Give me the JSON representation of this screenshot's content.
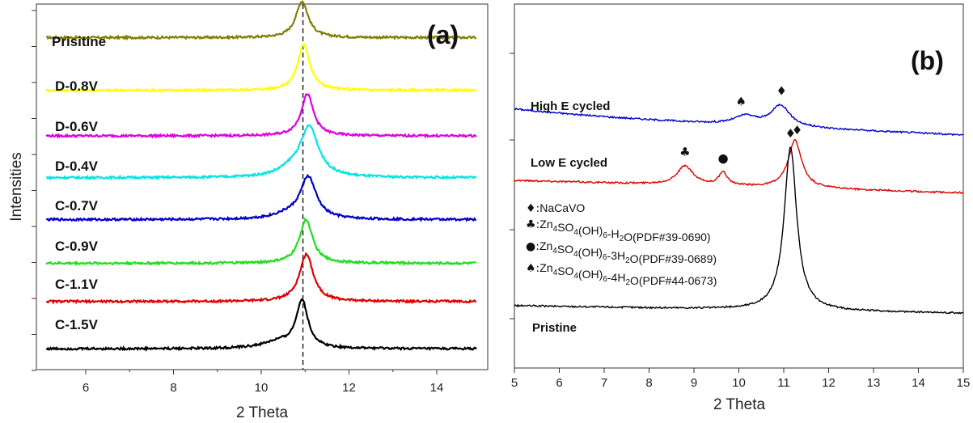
{
  "chart_data": [
    {
      "type": "line",
      "panel_label": "(a)",
      "xlabel": "2 Theta",
      "ylabel": "Intensities",
      "xlim": [
        5,
        15
      ],
      "x_ticks": [
        6,
        8,
        10,
        12,
        14
      ],
      "y_ticks": "unlabeled",
      "reference_line": {
        "x": 10.95,
        "style": "dashed"
      },
      "series": [
        {
          "name": "Prisitine",
          "color": "#808000",
          "offset": 8.9,
          "peaks": [
            {
              "center": 10.93,
              "height": 1.0,
              "width": 0.17
            }
          ]
        },
        {
          "name": "D-0.8V",
          "color": "#ffff00",
          "offset": 7.45,
          "peaks": [
            {
              "center": 10.97,
              "height": 1.25,
              "width": 0.17
            }
          ]
        },
        {
          "name": "D-0.6V",
          "color": "#e000e0",
          "offset": 6.2,
          "peaks": [
            {
              "center": 11.05,
              "height": 1.15,
              "width": 0.17
            }
          ]
        },
        {
          "name": "D-0.4V",
          "color": "#00e5e5",
          "offset": 5.05,
          "peaks": [
            {
              "center": 11.1,
              "height": 1.35,
              "width": 0.25
            },
            {
              "center": 10.7,
              "height": 0.2,
              "width": 0.35
            }
          ]
        },
        {
          "name": "C-0.7V",
          "color": "#0000cc",
          "offset": 3.9,
          "peaks": [
            {
              "center": 11.07,
              "height": 1.15,
              "width": 0.22
            },
            {
              "center": 10.6,
              "height": 0.12,
              "width": 0.4
            }
          ]
        },
        {
          "name": "C-0.9V",
          "color": "#22dd22",
          "offset": 2.7,
          "peaks": [
            {
              "center": 11.02,
              "height": 1.2,
              "width": 0.18
            }
          ]
        },
        {
          "name": "C-1.1V",
          "color": "#e00000",
          "offset": 1.65,
          "peaks": [
            {
              "center": 11.03,
              "height": 1.3,
              "width": 0.19
            }
          ]
        },
        {
          "name": "C-1.5V",
          "color": "#000000",
          "offset": 0.35,
          "peaks": [
            {
              "center": 10.93,
              "height": 1.3,
              "width": 0.16
            },
            {
              "center": 10.4,
              "height": 0.18,
              "width": 0.45
            }
          ]
        }
      ]
    },
    {
      "type": "line",
      "panel_label": "(b)",
      "xlabel": "2 Theta",
      "xlim": [
        5,
        15
      ],
      "x_ticks": [
        5,
        6,
        7,
        8,
        9,
        10,
        11,
        12,
        13,
        14,
        15
      ],
      "y_ticks": "unlabeled",
      "series": [
        {
          "name": "High E cycled",
          "color": "#0000cc",
          "offset": 7.5,
          "peaks": [
            {
              "center": 10.15,
              "height": 0.35,
              "width": 0.3
            },
            {
              "center": 10.93,
              "height": 0.85,
              "width": 0.25
            }
          ],
          "markers": [
            {
              "x": 10.05,
              "symbol": "spade"
            },
            {
              "x": 10.95,
              "symbol": "diamond"
            }
          ]
        },
        {
          "name": "Low E cycled",
          "color": "#dd0000",
          "offset": 5.0,
          "peaks": [
            {
              "center": 8.8,
              "height": 0.75,
              "width": 0.22
            },
            {
              "center": 9.65,
              "height": 0.5,
              "width": 0.12
            },
            {
              "center": 11.25,
              "height": 1.9,
              "width": 0.18
            }
          ],
          "markers": [
            {
              "x": 8.8,
              "symbol": "club"
            },
            {
              "x": 9.65,
              "symbol": "dot"
            },
            {
              "x": 11.3,
              "symbol": "diamond"
            }
          ]
        },
        {
          "name": "Pristine",
          "color": "#000000",
          "offset": 0.0,
          "peaks": [
            {
              "center": 11.15,
              "height": 6.5,
              "width": 0.17
            }
          ],
          "markers": [
            {
              "x": 11.15,
              "symbol": "diamond"
            }
          ]
        }
      ],
      "legend": [
        {
          "symbol": "diamond",
          "text": "NaCaVO"
        },
        {
          "symbol": "club",
          "formula": {
            "base": "Zn",
            "n1": "4",
            "mid": "SO",
            "n2": "4",
            "oh": "(OH)",
            "n3": "6",
            "hyd": "-H",
            "n4": "2",
            "end": "O",
            "pdf": "(PDF#39-0690)"
          }
        },
        {
          "symbol": "dot",
          "formula": {
            "base": "Zn",
            "n1": "4",
            "mid": "SO",
            "n2": "4",
            "oh": "(OH)",
            "n3": "6",
            "hyd": "-3H",
            "n4": "2",
            "end": "O",
            "pdf": "(PDF#39-0689)"
          }
        },
        {
          "symbol": "spade",
          "formula": {
            "base": "Zn",
            "n1": "4",
            "mid": "SO",
            "n2": "4",
            "oh": "(OH)",
            "n3": "6",
            "hyd": "-4H",
            "n4": "2",
            "end": "O",
            "pdf": "(PDF#44-0673)"
          }
        }
      ]
    }
  ]
}
